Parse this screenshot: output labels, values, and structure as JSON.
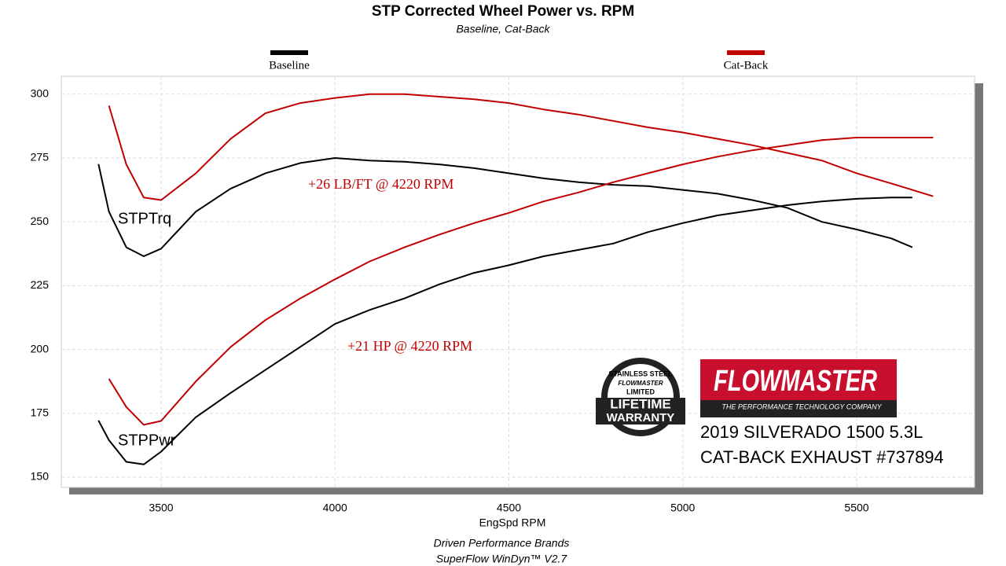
{
  "chart_data": {
    "type": "line",
    "title": "STP Corrected Wheel Power vs. RPM",
    "subtitle": "Baseline, Cat-Back",
    "x_label": "EngSpd  RPM",
    "footer": [
      "Driven Performance Brands",
      "SuperFlow WinDyn™  V2.7"
    ],
    "x": [
      3320,
      3350,
      3400,
      3450,
      3500,
      3600,
      3700,
      3800,
      3900,
      4000,
      4100,
      4200,
      4300,
      4400,
      4500,
      4600,
      4700,
      4800,
      4900,
      5000,
      5100,
      5200,
      5300,
      5400,
      5500,
      5600,
      5660,
      5720
    ],
    "series": [
      {
        "name": "Baseline",
        "color": "#000000",
        "curves": [
          {
            "values": [
              272.6,
              254,
              240,
              236.5,
              239.5,
              254,
              263,
              269,
              273,
              275,
              274,
              273.5,
              272.5,
              271,
              269,
              267,
              265.5,
              264.5,
              264,
              262.5,
              261,
              258.5,
              255.5,
              250,
              247,
              243.5,
              240,
              null
            ]
          },
          {
            "values": [
              172.2,
              164.5,
              156,
              155,
              160,
              173.5,
              183,
              192,
              201,
              210,
              215.5,
              220,
              225.5,
              230,
              233,
              236.5,
              239,
              241.5,
              246,
              249.5,
              252.5,
              254.5,
              256.5,
              258,
              259,
              259.5,
              259.5,
              null
            ]
          }
        ]
      },
      {
        "name": "Cat-Back",
        "color": "#c00000",
        "curves": [
          {
            "values": [
              null,
              295.5,
              272.5,
              259.5,
              258.5,
              269,
              282.5,
              292.5,
              296.5,
              298.5,
              300,
              300,
              299,
              298,
              296.5,
              294,
              292,
              289.5,
              287,
              285,
              282.5,
              280,
              277,
              274,
              269,
              265,
              262.5,
              260
            ]
          },
          {
            "values": [
              null,
              188.5,
              177.5,
              170.5,
              172,
              187.5,
              201,
              211.5,
              220,
              227.5,
              234.5,
              240,
              245,
              249.5,
              253.5,
              258,
              261.5,
              265.5,
              269,
              272.5,
              275.5,
              278,
              280,
              282,
              283,
              283,
              283,
              283
            ]
          }
        ]
      }
    ],
    "curve_labels": [
      "STPTrq",
      "STPPwr"
    ],
    "annotations": [
      "+26 LB/FT @ 4220 RPM",
      "+21 HP @ 4220 RPM"
    ],
    "xlim": [
      3213,
      5839
    ],
    "ylim": [
      146,
      307
    ],
    "xticks": [
      3500,
      4000,
      4500,
      5000,
      5500
    ],
    "yticks": [
      150,
      175,
      200,
      225,
      250,
      275,
      300
    ],
    "grid": true
  },
  "branding": {
    "brand": "FLOWMASTER",
    "tagline": "THE PERFORMANCE TECHNOLOGY COMPANY",
    "vehicle": "2019 SILVERADO 1500 5.3L",
    "product": "CAT-BACK EXHAUST #737894",
    "badge": [
      "STAINLESS STEEL",
      "FLOWMASTER",
      "LIMITED",
      "LIFETIME",
      "WARRANTY"
    ]
  }
}
